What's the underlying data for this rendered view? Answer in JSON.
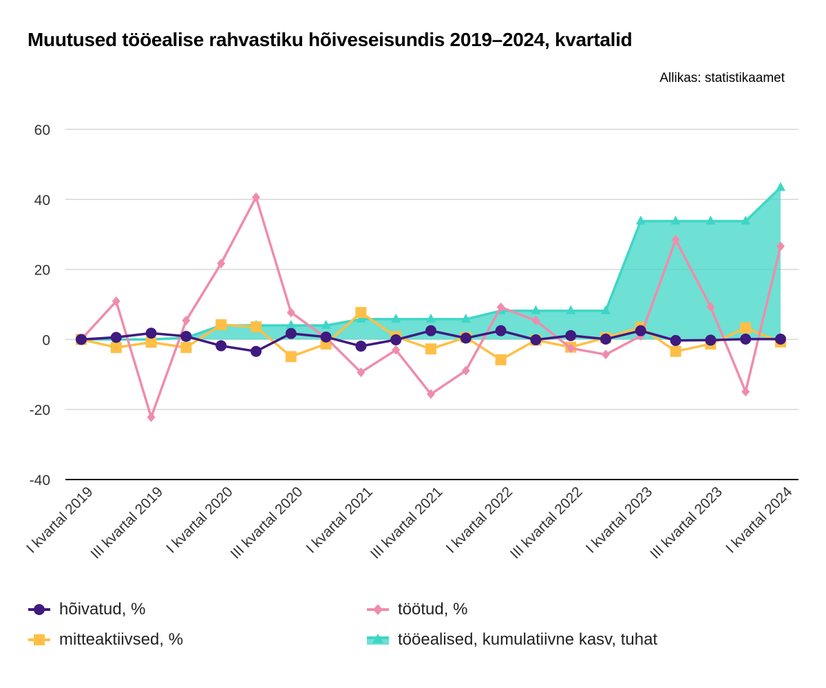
{
  "title": "Muutused tööealise rahvastiku hõiveseisundis 2019–2024, kvartalid",
  "source": "Allikas: statistikaamet",
  "chart_data": {
    "type": "line",
    "ylim": [
      -40,
      60
    ],
    "yticks": [
      60,
      40,
      20,
      0,
      -20,
      -40
    ],
    "grid": true,
    "legend_position": "bottom",
    "x": [
      "I kvartal 2019",
      "II kvartal 2019",
      "III kvartal 2019",
      "IV kvartal 2019",
      "I kvartal 2020",
      "II kvartal 2020",
      "III kvartal 2020",
      "IV kvartal 2020",
      "I kvartal 2021",
      "II kvartal 2021",
      "III kvartal 2021",
      "IV kvartal 2021",
      "I kvartal 2022",
      "II kvartal 2022",
      "III kvartal 2022",
      "IV kvartal 2022",
      "I kvartal 2023",
      "II kvartal 2023",
      "III kvartal 2023",
      "IV kvartal 2023",
      "I kvartal 2024"
    ],
    "xtick_labels": [
      "I kvartal 2019",
      "III kvartal 2019",
      "I kvartal 2020",
      "III kvartal 2020",
      "I kvartal 2021",
      "III kvartal 2021",
      "I kvartal 2022",
      "III kvartal 2022",
      "I kvartal 2023",
      "III kvartal 2023",
      "I kvartal 2024"
    ],
    "series": [
      {
        "name": "tööealised, kumulatiivne kasv, tuhat",
        "kind": "area",
        "marker": "triangle",
        "color": "#3dd6c6",
        "values": [
          0,
          0,
          0,
          0.5,
          4,
          4,
          4,
          4,
          5.8,
          5.8,
          5.8,
          5.8,
          8.2,
          8.2,
          8.2,
          8.2,
          33.8,
          33.8,
          33.8,
          33.8,
          43.4
        ]
      },
      {
        "name": "mitteaktiivsed, %",
        "kind": "line",
        "marker": "square",
        "color": "#ffbf47",
        "values": [
          0,
          -2.3,
          -0.8,
          -2.3,
          4.2,
          3.6,
          -4.9,
          -1.3,
          7.7,
          0.8,
          -2.7,
          0.6,
          -5.8,
          -0.2,
          -2.2,
          0.5,
          3.5,
          -3.4,
          -1.3,
          3.3,
          -0.7
        ]
      },
      {
        "name": "töötud, %",
        "kind": "line",
        "marker": "diamond",
        "color": "#f08cab",
        "values": [
          0,
          10.9,
          -22.2,
          5.4,
          21.7,
          40.6,
          7.7,
          0.5,
          -9.4,
          -3.0,
          -15.6,
          -8.9,
          9.2,
          5.4,
          -2.5,
          -4.3,
          1.0,
          28.5,
          9.3,
          -14.9,
          26.6
        ]
      },
      {
        "name": "hõivatud, %",
        "kind": "line",
        "marker": "circle",
        "color": "#3f1a7f",
        "values": [
          0,
          0.6,
          1.8,
          0.9,
          -1.8,
          -3.4,
          1.7,
          0.7,
          -1.9,
          -0.1,
          2.5,
          0.4,
          2.5,
          -0.1,
          1.1,
          0.1,
          2.5,
          -0.3,
          -0.2,
          0.1,
          0.1
        ]
      }
    ]
  },
  "legend": [
    {
      "label": "hõivatud, %",
      "marker": "circle",
      "color": "#3f1a7f"
    },
    {
      "label": "töötud, %",
      "marker": "diamond",
      "color": "#f08cab"
    },
    {
      "label": "mitteaktiivsed, %",
      "marker": "square",
      "color": "#ffbf47"
    },
    {
      "label": "tööealised, kumulatiivne kasv, tuhat",
      "marker": "triangle",
      "color": "#3dd6c6"
    }
  ]
}
